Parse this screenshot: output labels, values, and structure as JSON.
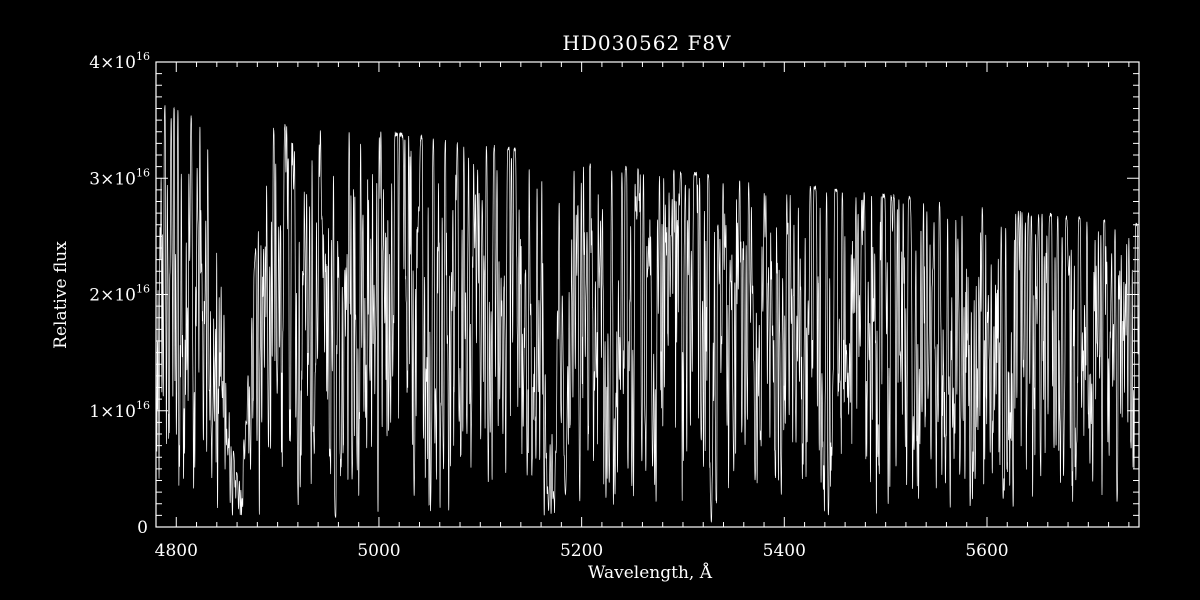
{
  "chart_data": {
    "type": "line",
    "title": "HD030562  F8V",
    "xlabel": "Wavelength, Å",
    "ylabel": "Relative flux",
    "xlim": [
      4780,
      5750
    ],
    "ylim": [
      0,
      4e+16
    ],
    "x_ticks": [
      {
        "value": 4800,
        "label": "4800"
      },
      {
        "value": 5000,
        "label": "5000"
      },
      {
        "value": 5200,
        "label": "5200"
      },
      {
        "value": 5400,
        "label": "5400"
      },
      {
        "value": 5600,
        "label": "5600"
      }
    ],
    "y_ticks": [
      {
        "value": 0,
        "label": "0",
        "mant": "",
        "exp": ""
      },
      {
        "value": 1e+16,
        "label": "1×10^16",
        "mant": "1×10",
        "exp": "16"
      },
      {
        "value": 2e+16,
        "label": "2×10^16",
        "mant": "2×10",
        "exp": "16"
      },
      {
        "value": 3e+16,
        "label": "3×10^16",
        "mant": "3×10",
        "exp": "16"
      },
      {
        "value": 4e+16,
        "label": "4×10^16",
        "mant": "4×10",
        "exp": "16"
      }
    ],
    "grid": false,
    "legend": "none",
    "colors": {
      "background": "#000000",
      "foreground": "#ffffff"
    },
    "continuum": {
      "x": [
        4780,
        4800,
        4830,
        4880,
        4950,
        5000,
        5100,
        5170,
        5200,
        5300,
        5400,
        5500,
        5600,
        5750
      ],
      "y": [
        3.65e+16,
        3.6e+16,
        3.55e+16,
        3.48e+16,
        3.45e+16,
        3.4e+16,
        3.28e+16,
        3.22e+16,
        3.12e+16,
        3.05e+16,
        2.95e+16,
        2.85e+16,
        2.75e+16,
        2.6e+16
      ]
    },
    "absorption_lines": [
      {
        "x": 4861,
        "width": 12,
        "min": 4500000000000000.0
      },
      {
        "x": 4891,
        "width": 0.8,
        "min": 7200000000000000.0
      },
      {
        "x": 4920,
        "width": 0.8,
        "min": 6200000000000000.0
      },
      {
        "x": 4957,
        "width": 0.8,
        "min": 4800000000000000.0
      },
      {
        "x": 5167,
        "width": 2.2,
        "min": 3800000000000000.0
      },
      {
        "x": 5173,
        "width": 2.2,
        "min": 3000000000000000.0
      },
      {
        "x": 5184,
        "width": 2.2,
        "min": 2800000000000000.0
      },
      {
        "x": 5227,
        "width": 0.8,
        "min": 6200000000000000.0
      },
      {
        "x": 5270,
        "width": 1.0,
        "min": 5200000000000000.0
      },
      {
        "x": 5328,
        "width": 0.8,
        "min": 6200000000000000.0
      },
      {
        "x": 5371,
        "width": 0.8,
        "min": 5800000000000000.0
      },
      {
        "x": 5397,
        "width": 0.8,
        "min": 6800000000000000.0
      },
      {
        "x": 5447,
        "width": 0.8,
        "min": 6200000000000000.0
      },
      {
        "x": 5528,
        "width": 1.0,
        "min": 6600000000000000.0
      },
      {
        "x": 5616,
        "width": 0.8,
        "min": 7800000000000000.0
      },
      {
        "x": 5688,
        "width": 0.8,
        "min": 7200000000000000.0
      }
    ]
  }
}
